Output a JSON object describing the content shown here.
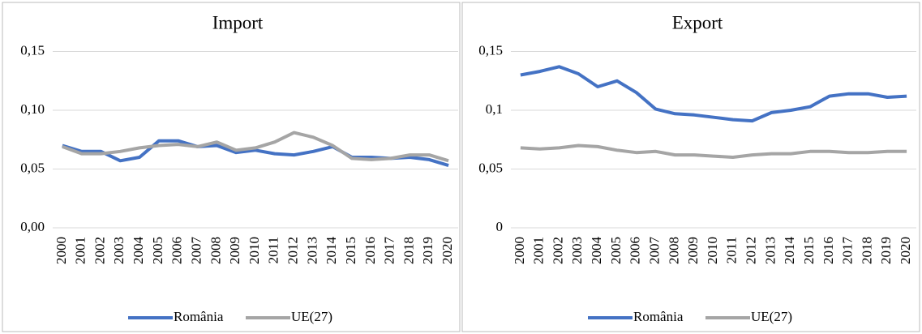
{
  "chart_data": [
    {
      "type": "line",
      "title": "Import",
      "categories": [
        "2000",
        "2001",
        "2002",
        "2003",
        "2004",
        "2005",
        "2006",
        "2007",
        "2008",
        "2009",
        "2010",
        "2011",
        "2012",
        "2013",
        "2014",
        "2015",
        "2016",
        "2017",
        "2018",
        "2019",
        "2020"
      ],
      "series": [
        {
          "name": "România",
          "color": "#4472c4",
          "values": [
            0.07,
            0.065,
            0.065,
            0.057,
            0.06,
            0.074,
            0.074,
            0.069,
            0.07,
            0.064,
            0.066,
            0.063,
            0.062,
            0.065,
            0.069,
            0.06,
            0.06,
            0.059,
            0.06,
            0.058,
            0.053
          ]
        },
        {
          "name": "UE(27)",
          "color": "#a5a5a5",
          "values": [
            0.069,
            0.063,
            0.063,
            0.065,
            0.068,
            0.07,
            0.071,
            0.069,
            0.073,
            0.066,
            0.068,
            0.073,
            0.081,
            0.077,
            0.07,
            0.059,
            0.058,
            0.059,
            0.062,
            0.062,
            0.057
          ]
        }
      ],
      "ylim": [
        0,
        0.18
      ],
      "yticks": [
        {
          "value": 0,
          "label": "0,00"
        },
        {
          "value": 0.05,
          "label": "0,05"
        },
        {
          "value": 0.1,
          "label": "0,10"
        },
        {
          "value": 0.15,
          "label": "0,15"
        }
      ],
      "grid": true
    },
    {
      "type": "line",
      "title": "Export",
      "categories": [
        "2000",
        "2001",
        "2002",
        "2003",
        "2004",
        "2005",
        "2006",
        "2007",
        "2008",
        "2009",
        "2010",
        "2011",
        "2012",
        "2013",
        "2014",
        "2015",
        "2016",
        "2017",
        "2018",
        "2019",
        "2020"
      ],
      "series": [
        {
          "name": "România",
          "color": "#4472c4",
          "values": [
            0.13,
            0.133,
            0.137,
            0.131,
            0.12,
            0.125,
            0.115,
            0.101,
            0.097,
            0.096,
            0.094,
            0.092,
            0.091,
            0.098,
            0.1,
            0.103,
            0.112,
            0.114,
            0.114,
            0.111,
            0.112
          ]
        },
        {
          "name": "UE(27)",
          "color": "#a5a5a5",
          "values": [
            0.068,
            0.067,
            0.068,
            0.07,
            0.069,
            0.066,
            0.064,
            0.065,
            0.062,
            0.062,
            0.061,
            0.06,
            0.062,
            0.063,
            0.063,
            0.065,
            0.065,
            0.064,
            0.064,
            0.065,
            0.065
          ]
        }
      ],
      "ylim": [
        0,
        0.18
      ],
      "yticks": [
        {
          "value": 0,
          "label": "0"
        },
        {
          "value": 0.05,
          "label": "0,05"
        },
        {
          "value": 0.1,
          "label": "0,1"
        },
        {
          "value": 0.15,
          "label": "0,15"
        }
      ],
      "grid": true
    }
  ]
}
